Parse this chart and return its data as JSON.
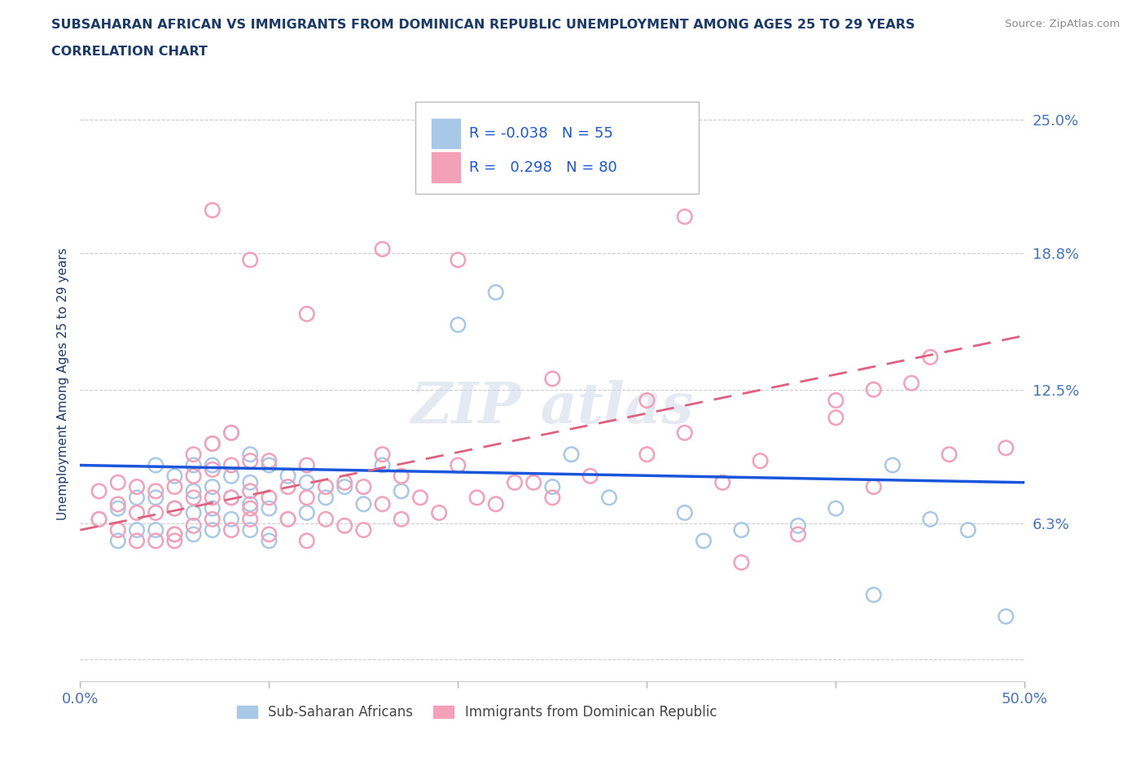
{
  "title_line1": "SUBSAHARAN AFRICAN VS IMMIGRANTS FROM DOMINICAN REPUBLIC UNEMPLOYMENT AMONG AGES 25 TO 29 YEARS",
  "title_line2": "CORRELATION CHART",
  "source_text": "Source: ZipAtlas.com",
  "ylabel": "Unemployment Among Ages 25 to 29 years",
  "xlim": [
    0.0,
    0.5
  ],
  "ylim": [
    -0.01,
    0.265
  ],
  "yticks": [
    0.0,
    0.063,
    0.125,
    0.188,
    0.25
  ],
  "ytick_labels": [
    "",
    "6.3%",
    "12.5%",
    "18.8%",
    "25.0%"
  ],
  "xticks": [
    0.0,
    0.1,
    0.2,
    0.3,
    0.4,
    0.5
  ],
  "xtick_labels": [
    "0.0%",
    "",
    "",
    "",
    "",
    "50.0%"
  ],
  "blue_color": "#a8c8e8",
  "pink_color": "#f4a0b8",
  "blue_line_color": "#1a56db",
  "pink_line_color": "#e06080",
  "legend_blue_R": "-0.038",
  "legend_blue_N": "55",
  "legend_pink_R": "0.298",
  "legend_pink_N": "80",
  "legend_label_blue": "Sub-Saharan Africans",
  "legend_label_pink": "Immigrants from Dominican Republic",
  "title_color": "#1a3a6a",
  "axis_label_color": "#1a3a6a",
  "tick_label_color": "#4472c4",
  "grid_color": "#c0c0c0",
  "background_color": "#ffffff",
  "blue_line_start_y": 0.09,
  "blue_line_end_y": 0.082,
  "pink_line_start_y": 0.06,
  "pink_line_end_y": 0.15,
  "blue_scatter_x": [
    0.01,
    0.02,
    0.02,
    0.03,
    0.03,
    0.04,
    0.04,
    0.04,
    0.05,
    0.05,
    0.05,
    0.06,
    0.06,
    0.06,
    0.06,
    0.07,
    0.07,
    0.07,
    0.07,
    0.07,
    0.08,
    0.08,
    0.08,
    0.08,
    0.09,
    0.09,
    0.09,
    0.09,
    0.1,
    0.1,
    0.1,
    0.11,
    0.11,
    0.12,
    0.12,
    0.13,
    0.14,
    0.15,
    0.16,
    0.17,
    0.2,
    0.22,
    0.25,
    0.26,
    0.28,
    0.32,
    0.33,
    0.35,
    0.38,
    0.4,
    0.42,
    0.43,
    0.45,
    0.47,
    0.49
  ],
  "blue_scatter_y": [
    0.065,
    0.07,
    0.055,
    0.06,
    0.075,
    0.06,
    0.075,
    0.09,
    0.058,
    0.07,
    0.085,
    0.058,
    0.068,
    0.078,
    0.09,
    0.06,
    0.07,
    0.08,
    0.09,
    0.1,
    0.065,
    0.075,
    0.085,
    0.105,
    0.06,
    0.072,
    0.082,
    0.095,
    0.055,
    0.07,
    0.09,
    0.065,
    0.085,
    0.068,
    0.082,
    0.075,
    0.08,
    0.072,
    0.09,
    0.078,
    0.155,
    0.17,
    0.08,
    0.095,
    0.075,
    0.068,
    0.055,
    0.06,
    0.062,
    0.07,
    0.03,
    0.09,
    0.065,
    0.06,
    0.02
  ],
  "pink_scatter_x": [
    0.01,
    0.01,
    0.02,
    0.02,
    0.02,
    0.03,
    0.03,
    0.03,
    0.04,
    0.04,
    0.04,
    0.05,
    0.05,
    0.05,
    0.05,
    0.06,
    0.06,
    0.06,
    0.06,
    0.07,
    0.07,
    0.07,
    0.07,
    0.08,
    0.08,
    0.08,
    0.08,
    0.09,
    0.09,
    0.09,
    0.09,
    0.1,
    0.1,
    0.1,
    0.11,
    0.11,
    0.12,
    0.12,
    0.12,
    0.13,
    0.13,
    0.14,
    0.14,
    0.15,
    0.15,
    0.16,
    0.16,
    0.17,
    0.17,
    0.18,
    0.19,
    0.2,
    0.21,
    0.22,
    0.23,
    0.24,
    0.25,
    0.27,
    0.3,
    0.32,
    0.34,
    0.36,
    0.38,
    0.4,
    0.42,
    0.44,
    0.46,
    0.49,
    0.07,
    0.09,
    0.12,
    0.16,
    0.2,
    0.25,
    0.3,
    0.35,
    0.4,
    0.45,
    0.32,
    0.42
  ],
  "pink_scatter_y": [
    0.065,
    0.078,
    0.06,
    0.072,
    0.082,
    0.055,
    0.068,
    0.08,
    0.055,
    0.068,
    0.078,
    0.058,
    0.07,
    0.08,
    0.055,
    0.062,
    0.075,
    0.085,
    0.095,
    0.065,
    0.075,
    0.088,
    0.1,
    0.06,
    0.075,
    0.09,
    0.105,
    0.065,
    0.078,
    0.092,
    0.07,
    0.058,
    0.075,
    0.092,
    0.065,
    0.08,
    0.055,
    0.075,
    0.09,
    0.065,
    0.08,
    0.062,
    0.082,
    0.06,
    0.08,
    0.072,
    0.095,
    0.065,
    0.085,
    0.075,
    0.068,
    0.09,
    0.075,
    0.072,
    0.082,
    0.082,
    0.075,
    0.085,
    0.095,
    0.105,
    0.082,
    0.092,
    0.058,
    0.112,
    0.08,
    0.128,
    0.095,
    0.098,
    0.208,
    0.185,
    0.16,
    0.19,
    0.185,
    0.13,
    0.12,
    0.045,
    0.12,
    0.14,
    0.205,
    0.125
  ]
}
